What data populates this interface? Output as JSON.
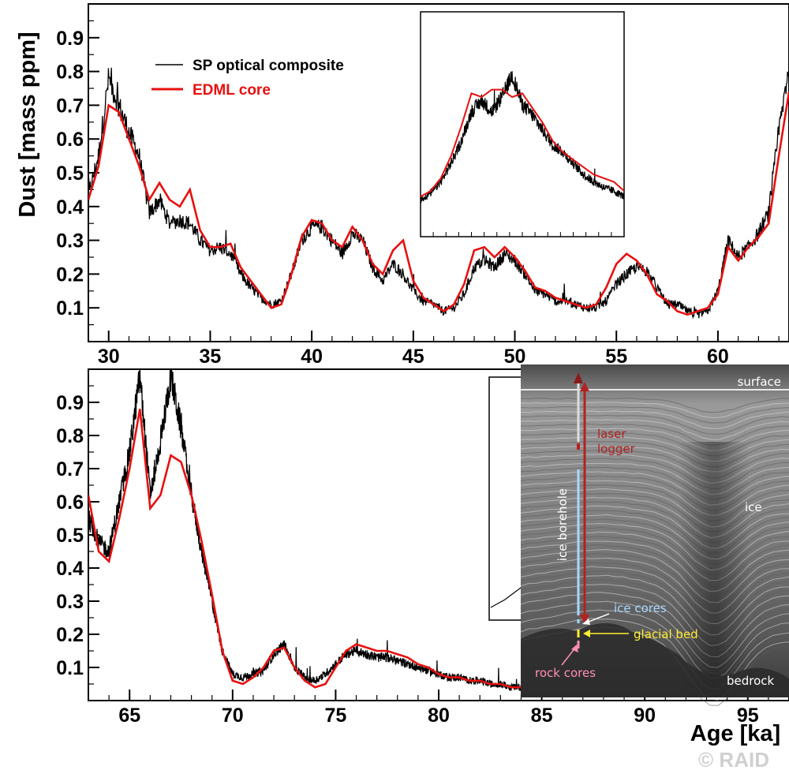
{
  "chart_data": [
    {
      "type": "line",
      "title": "",
      "xlabel": "",
      "ylabel": "Dust [mass ppm]",
      "xlim": [
        29,
        63.5
      ],
      "ylim": [
        0,
        1.0
      ],
      "x_ticks": [
        30,
        35,
        40,
        45,
        50,
        55,
        60
      ],
      "y_ticks": [
        0.1,
        0.2,
        0.3,
        0.4,
        0.5,
        0.6,
        0.7,
        0.8,
        0.9
      ],
      "grid": false,
      "legend_position": "top-left",
      "colors": {
        "sp": "#000000",
        "edml": "#e81010"
      },
      "series": [
        {
          "name": "SP optical composite",
          "x": [
            29.0,
            29.5,
            30.0,
            30.5,
            31.0,
            31.5,
            32.0,
            32.5,
            33.0,
            33.5,
            34.0,
            34.5,
            35.0,
            35.5,
            36.0,
            36.5,
            37.0,
            37.5,
            38.0,
            38.5,
            39.0,
            39.5,
            40.0,
            40.5,
            41.0,
            41.5,
            42.0,
            42.5,
            43.0,
            43.5,
            44.0,
            44.5,
            45.0,
            45.5,
            46.0,
            46.5,
            47.0,
            47.5,
            48.0,
            48.5,
            49.0,
            49.5,
            50.0,
            50.5,
            51.0,
            51.5,
            52.0,
            52.5,
            53.0,
            53.5,
            54.0,
            54.5,
            55.0,
            55.5,
            56.0,
            56.5,
            57.0,
            57.5,
            58.0,
            58.5,
            59.0,
            59.5,
            60.0,
            60.5,
            61.0,
            61.5,
            62.0,
            62.5,
            63.0,
            63.5
          ],
          "values": [
            0.43,
            0.55,
            0.78,
            0.7,
            0.62,
            0.55,
            0.38,
            0.42,
            0.35,
            0.36,
            0.35,
            0.3,
            0.27,
            0.28,
            0.26,
            0.2,
            0.16,
            0.13,
            0.11,
            0.12,
            0.2,
            0.3,
            0.34,
            0.34,
            0.3,
            0.26,
            0.32,
            0.3,
            0.22,
            0.18,
            0.23,
            0.2,
            0.15,
            0.12,
            0.11,
            0.09,
            0.1,
            0.14,
            0.22,
            0.24,
            0.22,
            0.26,
            0.24,
            0.2,
            0.15,
            0.14,
            0.12,
            0.12,
            0.11,
            0.1,
            0.1,
            0.12,
            0.17,
            0.2,
            0.22,
            0.21,
            0.16,
            0.11,
            0.11,
            0.09,
            0.08,
            0.09,
            0.15,
            0.3,
            0.25,
            0.28,
            0.32,
            0.38,
            0.62,
            0.82
          ]
        },
        {
          "name": "EDML core",
          "x": [
            29.0,
            29.5,
            30.0,
            30.5,
            31.0,
            31.5,
            32.0,
            32.5,
            33.0,
            33.5,
            34.0,
            34.5,
            35.0,
            35.5,
            36.0,
            36.5,
            37.0,
            37.5,
            38.0,
            38.5,
            39.0,
            39.5,
            40.0,
            40.5,
            41.0,
            41.5,
            42.0,
            42.5,
            43.0,
            43.5,
            44.0,
            44.5,
            45.0,
            45.5,
            46.0,
            46.5,
            47.0,
            47.5,
            48.0,
            48.5,
            49.0,
            49.5,
            50.0,
            50.5,
            51.0,
            51.5,
            52.0,
            52.5,
            53.0,
            53.5,
            54.0,
            54.5,
            55.0,
            55.5,
            56.0,
            56.5,
            57.0,
            57.5,
            58.0,
            58.5,
            59.0,
            59.5,
            60.0,
            60.5,
            61.0,
            61.5,
            62.0,
            62.5,
            63.0,
            63.5
          ],
          "values": [
            0.42,
            0.52,
            0.7,
            0.68,
            0.6,
            0.52,
            0.42,
            0.47,
            0.42,
            0.4,
            0.45,
            0.33,
            0.28,
            0.28,
            0.29,
            0.22,
            0.18,
            0.14,
            0.1,
            0.11,
            0.2,
            0.31,
            0.36,
            0.35,
            0.3,
            0.28,
            0.34,
            0.3,
            0.23,
            0.2,
            0.27,
            0.3,
            0.18,
            0.13,
            0.11,
            0.09,
            0.11,
            0.17,
            0.27,
            0.28,
            0.25,
            0.28,
            0.25,
            0.21,
            0.16,
            0.15,
            0.13,
            0.12,
            0.11,
            0.1,
            0.11,
            0.16,
            0.23,
            0.26,
            0.24,
            0.2,
            0.14,
            0.12,
            0.09,
            0.08,
            0.09,
            0.1,
            0.14,
            0.28,
            0.24,
            0.28,
            0.31,
            0.35,
            0.55,
            0.74
          ]
        }
      ],
      "inset": {
        "x": [
          0.0,
          0.05,
          0.1,
          0.15,
          0.2,
          0.25,
          0.3,
          0.35,
          0.4,
          0.45,
          0.5,
          0.55,
          0.6,
          0.65,
          0.7,
          0.75,
          0.8,
          0.85,
          0.9,
          0.95,
          1.0
        ],
        "sp": [
          0.1,
          0.14,
          0.2,
          0.3,
          0.42,
          0.58,
          0.64,
          0.58,
          0.66,
          0.78,
          0.62,
          0.56,
          0.48,
          0.4,
          0.36,
          0.3,
          0.24,
          0.2,
          0.17,
          0.15,
          0.12
        ],
        "edml": [
          0.12,
          0.15,
          0.22,
          0.34,
          0.5,
          0.68,
          0.66,
          0.7,
          0.7,
          0.66,
          0.68,
          0.6,
          0.52,
          0.42,
          0.36,
          0.32,
          0.28,
          0.24,
          0.22,
          0.2,
          0.15
        ]
      }
    },
    {
      "type": "line",
      "title": "",
      "xlabel": "Age [ka]",
      "ylabel": "",
      "xlim": [
        63,
        97
      ],
      "ylim": [
        0,
        1.0
      ],
      "x_ticks": [
        65,
        70,
        75,
        80,
        85,
        90,
        95
      ],
      "y_ticks": [
        0.1,
        0.2,
        0.3,
        0.4,
        0.5,
        0.6,
        0.7,
        0.8,
        0.9
      ],
      "grid": false,
      "series": [
        {
          "name": "SP optical composite",
          "x": [
            63.0,
            63.5,
            64.0,
            64.5,
            65.0,
            65.5,
            66.0,
            66.5,
            67.0,
            67.5,
            68.0,
            68.5,
            69.0,
            69.5,
            70.0,
            70.5,
            71.0,
            71.5,
            72.0,
            72.5,
            73.0,
            73.5,
            74.0,
            74.5,
            75.0,
            75.5,
            76.0,
            76.5,
            77.0,
            77.5,
            78.0,
            78.5,
            79.0,
            79.5,
            80.0,
            80.5,
            81.0,
            81.5,
            82.0,
            82.5,
            83.0,
            83.5,
            84.0
          ],
          "values": [
            0.55,
            0.48,
            0.45,
            0.6,
            0.75,
            0.98,
            0.62,
            0.78,
            0.98,
            0.82,
            0.62,
            0.45,
            0.3,
            0.15,
            0.08,
            0.07,
            0.08,
            0.09,
            0.14,
            0.17,
            0.1,
            0.07,
            0.06,
            0.08,
            0.11,
            0.14,
            0.15,
            0.14,
            0.13,
            0.13,
            0.12,
            0.11,
            0.1,
            0.09,
            0.08,
            0.07,
            0.07,
            0.06,
            0.06,
            0.05,
            0.05,
            0.04,
            0.04
          ]
        },
        {
          "name": "EDML core",
          "x": [
            63.0,
            63.5,
            64.0,
            64.5,
            65.0,
            65.5,
            66.0,
            66.5,
            67.0,
            67.5,
            68.0,
            68.5,
            69.0,
            69.5,
            70.0,
            70.5,
            71.0,
            71.5,
            72.0,
            72.5,
            73.0,
            73.5,
            74.0,
            74.5,
            75.0,
            75.5,
            76.0,
            76.5,
            77.0,
            77.5,
            78.0,
            78.5,
            79.0,
            79.5,
            80.0,
            80.5,
            81.0,
            81.5,
            82.0,
            82.5,
            83.0,
            83.5,
            84.0
          ],
          "values": [
            0.62,
            0.45,
            0.42,
            0.55,
            0.7,
            0.88,
            0.58,
            0.62,
            0.74,
            0.72,
            0.62,
            0.48,
            0.32,
            0.15,
            0.06,
            0.05,
            0.07,
            0.1,
            0.15,
            0.16,
            0.1,
            0.06,
            0.04,
            0.05,
            0.1,
            0.15,
            0.17,
            0.16,
            0.15,
            0.15,
            0.14,
            0.13,
            0.11,
            0.1,
            0.08,
            0.07,
            0.07,
            0.06,
            0.06,
            0.05,
            0.05,
            0.04,
            0.04
          ]
        }
      ]
    }
  ],
  "legend": {
    "sp_label": "SP optical composite",
    "edml_label": "EDML core"
  },
  "radar": {
    "surface": "surface",
    "laser_line1": "laser",
    "laser_line2": "logger",
    "ice": "ice",
    "ice_borehole": "ice borehole",
    "ice_cores": "ice cores",
    "glacial_bed": "glacial bed",
    "rock_cores": "rock cores",
    "bedrock": "bedrock",
    "colors": {
      "laser": "#b22222",
      "borehole": "#a8d8ff",
      "bed": "#ffee33",
      "rock": "#ff8fb5",
      "label": "#ffffff"
    }
  },
  "copyright": "© RAID"
}
